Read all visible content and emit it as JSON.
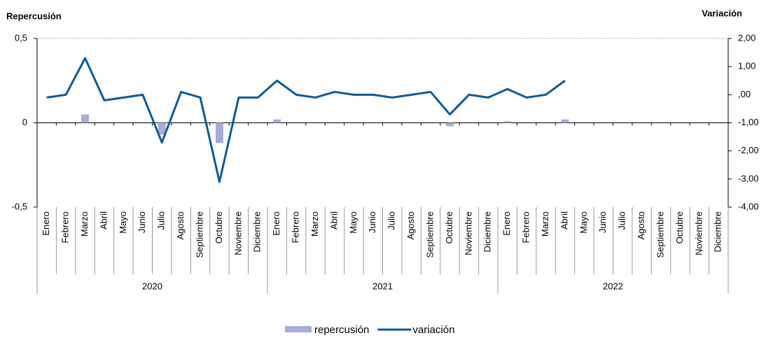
{
  "chart_data": {
    "type": "bar-line",
    "y_title": "Repercusión",
    "y2_title": "Variación",
    "categories": [
      "Enero",
      "Febrero",
      "Marzo",
      "Abril",
      "Mayo",
      "Junio",
      "Julio",
      "Agosto",
      "Septiembre",
      "Octubre",
      "Noviembre",
      "Diciembre",
      "Enero",
      "Febrero",
      "Marzo",
      "Abril",
      "Mayo",
      "Junio",
      "Julio",
      "Agosto",
      "Septiembre",
      "Octubre",
      "Noviembre",
      "Diciembre",
      "Enero",
      "Febrero",
      "Marzo",
      "Abril",
      "Mayo",
      "Junio",
      "Julio",
      "Agosto",
      "Septiembre",
      "Octubre",
      "Noviembre",
      "Diciembre"
    ],
    "years": [
      "2020",
      "2021",
      "2022"
    ],
    "series": [
      {
        "name": "repercusión",
        "type": "bar",
        "color": "#a6add9",
        "axis": "y",
        "values": [
          0,
          0,
          0.05,
          0,
          0,
          0,
          -0.07,
          0,
          0,
          -0.12,
          0,
          0,
          0.02,
          0,
          0,
          0,
          0,
          0,
          0,
          0,
          0,
          -0.02,
          0,
          0,
          0.01,
          0,
          0,
          0.02,
          null,
          null,
          null,
          null,
          null,
          null,
          null,
          null
        ]
      },
      {
        "name": "variación",
        "type": "line",
        "color": "#0e5a97",
        "axis": "y2",
        "values": [
          -0.1,
          0.0,
          1.3,
          -0.2,
          -0.1,
          0.0,
          -1.7,
          0.1,
          -0.1,
          -3.1,
          -0.1,
          -0.1,
          0.5,
          0.0,
          -0.1,
          0.1,
          0.0,
          0.0,
          -0.1,
          0.0,
          0.1,
          -0.7,
          0.0,
          -0.1,
          0.2,
          -0.1,
          0.0,
          0.5,
          null,
          null,
          null,
          null,
          null,
          null,
          null,
          null
        ]
      }
    ],
    "ylim": [
      -0.5,
      0.5
    ],
    "yticks": [
      {
        "value": 0.5,
        "label": "0,5"
      },
      0,
      {
        "value": -0.5,
        "label": "-0,5"
      }
    ],
    "y2lim": [
      -4,
      2
    ],
    "y2ticks": [
      {
        "value": 2,
        "label": "2,00"
      },
      {
        "value": 1,
        "label": "1,00"
      },
      {
        "value": 0,
        "label": ",00"
      },
      {
        "value": -1,
        "label": "-1,00"
      },
      {
        "value": -2,
        "label": "-2,00"
      },
      {
        "value": -3,
        "label": "-3,00"
      },
      {
        "value": -4,
        "label": "-4,00"
      }
    ]
  }
}
